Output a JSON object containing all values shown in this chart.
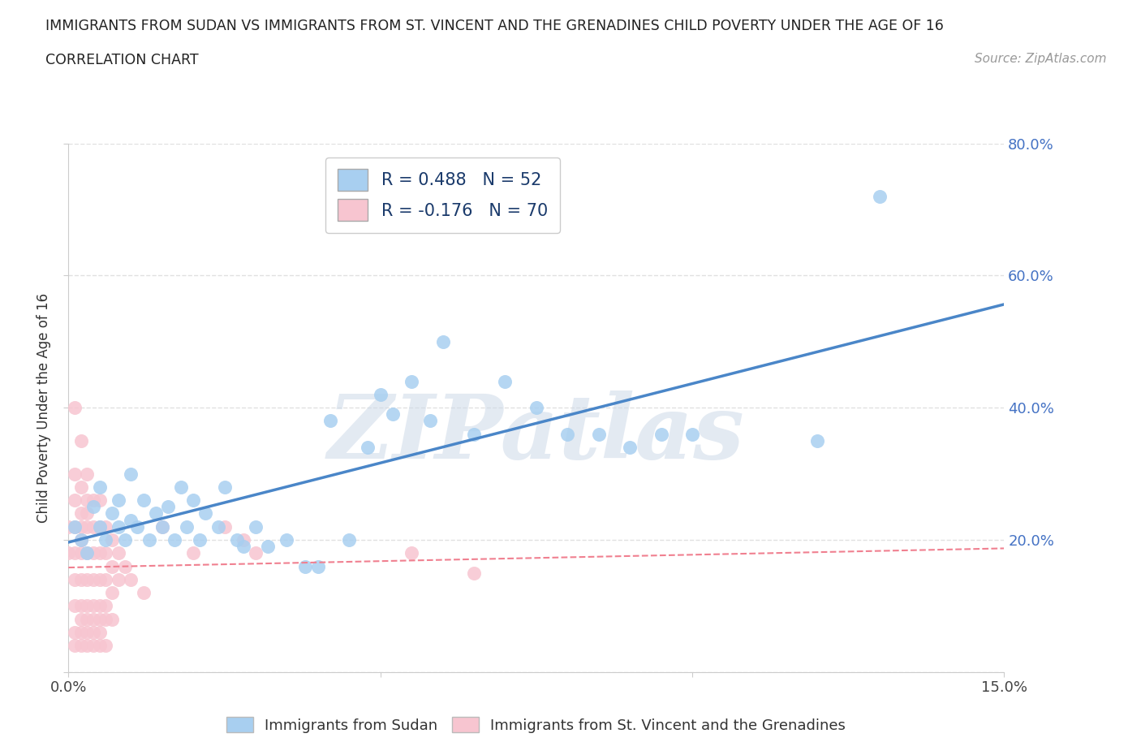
{
  "title_line1": "IMMIGRANTS FROM SUDAN VS IMMIGRANTS FROM ST. VINCENT AND THE GRENADINES CHILD POVERTY UNDER THE AGE OF 16",
  "title_line2": "CORRELATION CHART",
  "source_text": "Source: ZipAtlas.com",
  "ylabel": "Child Poverty Under the Age of 16",
  "xlim": [
    0.0,
    0.15
  ],
  "ylim": [
    0.0,
    0.8
  ],
  "legend1_label": "R = 0.488   N = 52",
  "legend2_label": "R = -0.176   N = 70",
  "series1_color": "#a8cff0",
  "series2_color": "#f7c5d0",
  "trendline1_color": "#4a86c8",
  "trendline2_color": "#f08090",
  "watermark": "ZIPatlas",
  "watermark_color": "#cdd9e8",
  "sudan_points": [
    [
      0.001,
      0.22
    ],
    [
      0.002,
      0.2
    ],
    [
      0.003,
      0.18
    ],
    [
      0.004,
      0.25
    ],
    [
      0.005,
      0.22
    ],
    [
      0.005,
      0.28
    ],
    [
      0.006,
      0.2
    ],
    [
      0.007,
      0.24
    ],
    [
      0.008,
      0.22
    ],
    [
      0.008,
      0.26
    ],
    [
      0.009,
      0.2
    ],
    [
      0.01,
      0.23
    ],
    [
      0.01,
      0.3
    ],
    [
      0.011,
      0.22
    ],
    [
      0.012,
      0.26
    ],
    [
      0.013,
      0.2
    ],
    [
      0.014,
      0.24
    ],
    [
      0.015,
      0.22
    ],
    [
      0.016,
      0.25
    ],
    [
      0.017,
      0.2
    ],
    [
      0.018,
      0.28
    ],
    [
      0.019,
      0.22
    ],
    [
      0.02,
      0.26
    ],
    [
      0.021,
      0.2
    ],
    [
      0.022,
      0.24
    ],
    [
      0.024,
      0.22
    ],
    [
      0.025,
      0.28
    ],
    [
      0.027,
      0.2
    ],
    [
      0.028,
      0.19
    ],
    [
      0.03,
      0.22
    ],
    [
      0.032,
      0.19
    ],
    [
      0.035,
      0.2
    ],
    [
      0.038,
      0.16
    ],
    [
      0.04,
      0.16
    ],
    [
      0.042,
      0.38
    ],
    [
      0.045,
      0.2
    ],
    [
      0.048,
      0.34
    ],
    [
      0.05,
      0.42
    ],
    [
      0.052,
      0.39
    ],
    [
      0.055,
      0.44
    ],
    [
      0.058,
      0.38
    ],
    [
      0.06,
      0.5
    ],
    [
      0.065,
      0.36
    ],
    [
      0.07,
      0.44
    ],
    [
      0.075,
      0.4
    ],
    [
      0.08,
      0.36
    ],
    [
      0.085,
      0.36
    ],
    [
      0.09,
      0.34
    ],
    [
      0.095,
      0.36
    ],
    [
      0.1,
      0.36
    ],
    [
      0.12,
      0.35
    ],
    [
      0.13,
      0.72
    ]
  ],
  "stvincent_points": [
    [
      0.0,
      0.22
    ],
    [
      0.0,
      0.18
    ],
    [
      0.001,
      0.4
    ],
    [
      0.001,
      0.3
    ],
    [
      0.001,
      0.26
    ],
    [
      0.001,
      0.22
    ],
    [
      0.001,
      0.18
    ],
    [
      0.001,
      0.14
    ],
    [
      0.001,
      0.1
    ],
    [
      0.001,
      0.06
    ],
    [
      0.001,
      0.04
    ],
    [
      0.002,
      0.35
    ],
    [
      0.002,
      0.28
    ],
    [
      0.002,
      0.24
    ],
    [
      0.002,
      0.22
    ],
    [
      0.002,
      0.2
    ],
    [
      0.002,
      0.18
    ],
    [
      0.002,
      0.14
    ],
    [
      0.002,
      0.1
    ],
    [
      0.002,
      0.08
    ],
    [
      0.002,
      0.06
    ],
    [
      0.002,
      0.04
    ],
    [
      0.003,
      0.3
    ],
    [
      0.003,
      0.26
    ],
    [
      0.003,
      0.24
    ],
    [
      0.003,
      0.22
    ],
    [
      0.003,
      0.18
    ],
    [
      0.003,
      0.14
    ],
    [
      0.003,
      0.1
    ],
    [
      0.003,
      0.08
    ],
    [
      0.003,
      0.06
    ],
    [
      0.003,
      0.04
    ],
    [
      0.004,
      0.26
    ],
    [
      0.004,
      0.22
    ],
    [
      0.004,
      0.18
    ],
    [
      0.004,
      0.14
    ],
    [
      0.004,
      0.1
    ],
    [
      0.004,
      0.08
    ],
    [
      0.004,
      0.06
    ],
    [
      0.004,
      0.04
    ],
    [
      0.005,
      0.26
    ],
    [
      0.005,
      0.22
    ],
    [
      0.005,
      0.18
    ],
    [
      0.005,
      0.14
    ],
    [
      0.005,
      0.1
    ],
    [
      0.005,
      0.08
    ],
    [
      0.005,
      0.06
    ],
    [
      0.005,
      0.04
    ],
    [
      0.006,
      0.22
    ],
    [
      0.006,
      0.18
    ],
    [
      0.006,
      0.14
    ],
    [
      0.006,
      0.1
    ],
    [
      0.006,
      0.08
    ],
    [
      0.006,
      0.04
    ],
    [
      0.007,
      0.2
    ],
    [
      0.007,
      0.16
    ],
    [
      0.007,
      0.12
    ],
    [
      0.007,
      0.08
    ],
    [
      0.008,
      0.18
    ],
    [
      0.008,
      0.14
    ],
    [
      0.009,
      0.16
    ],
    [
      0.01,
      0.14
    ],
    [
      0.012,
      0.12
    ],
    [
      0.015,
      0.22
    ],
    [
      0.02,
      0.18
    ],
    [
      0.025,
      0.22
    ],
    [
      0.028,
      0.2
    ],
    [
      0.03,
      0.18
    ],
    [
      0.055,
      0.18
    ],
    [
      0.065,
      0.15
    ]
  ]
}
